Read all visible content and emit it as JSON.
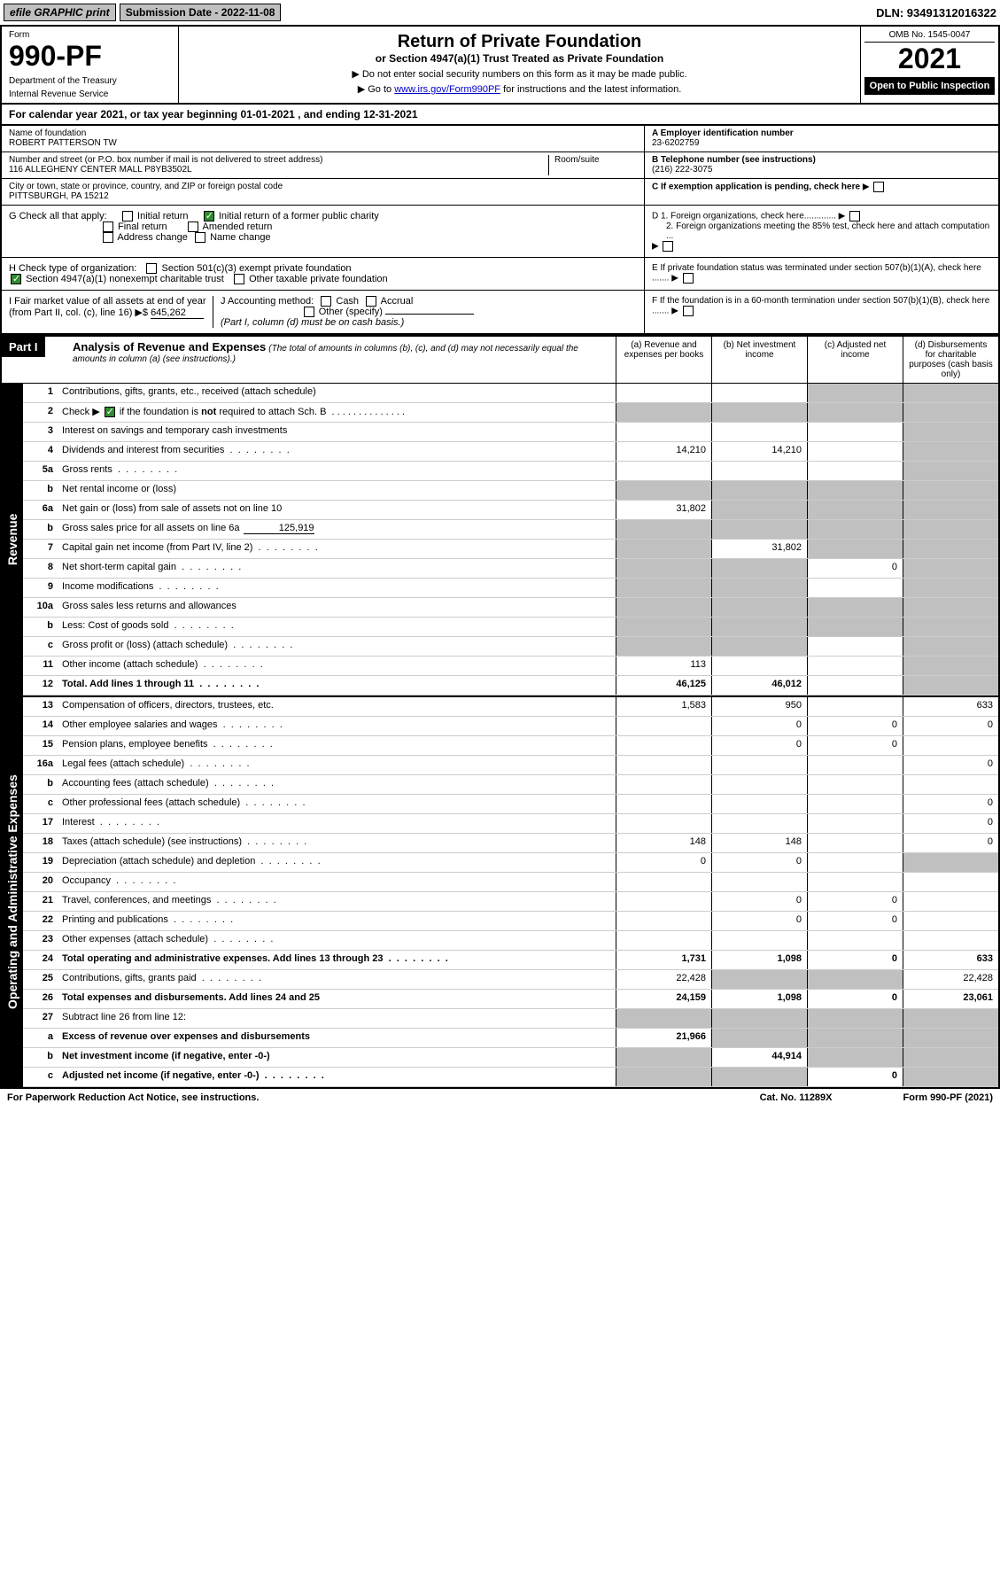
{
  "topbar": {
    "efile": "efile GRAPHIC print",
    "submission": "Submission Date - 2022-11-08",
    "dln": "DLN: 93491312016322"
  },
  "header": {
    "form_label": "Form",
    "form_number": "990-PF",
    "dept1": "Department of the Treasury",
    "dept2": "Internal Revenue Service",
    "title": "Return of Private Foundation",
    "subtitle": "or Section 4947(a)(1) Trust Treated as Private Foundation",
    "note1": "▶ Do not enter social security numbers on this form as it may be made public.",
    "note2_pre": "▶ Go to ",
    "note2_link": "www.irs.gov/Form990PF",
    "note2_post": " for instructions and the latest information.",
    "omb": "OMB No. 1545-0047",
    "year": "2021",
    "open": "Open to Public Inspection"
  },
  "calendar": "For calendar year 2021, or tax year beginning 01-01-2021                           , and ending 12-31-2021",
  "info": {
    "name_label": "Name of foundation",
    "name": "ROBERT PATTERSON TW",
    "addr_label": "Number and street (or P.O. box number if mail is not delivered to street address)",
    "addr": "116 ALLEGHENY CENTER MALL P8YB3502L",
    "room_label": "Room/suite",
    "city_label": "City or town, state or province, country, and ZIP or foreign postal code",
    "city": "PITTSBURGH, PA  15212",
    "ein_label": "A Employer identification number",
    "ein": "23-6202759",
    "phone_label": "B Telephone number (see instructions)",
    "phone": "(216) 222-3075",
    "c_label": "C If exemption application is pending, check here",
    "d1": "D 1. Foreign organizations, check here.............",
    "d2": "2. Foreign organizations meeting the 85% test, check here and attach computation ...",
    "e_label": "E  If private foundation status was terminated under section 507(b)(1)(A), check here .......",
    "f_label": "F  If the foundation is in a 60-month termination under section 507(b)(1)(B), check here .......",
    "g_label": "G Check all that apply:",
    "g_initial": "Initial return",
    "g_initial_former": "Initial return of a former public charity",
    "g_final": "Final return",
    "g_amended": "Amended return",
    "g_address": "Address change",
    "g_name": "Name change",
    "h_label": "H Check type of organization:",
    "h_501c3": "Section 501(c)(3) exempt private foundation",
    "h_4947": "Section 4947(a)(1) nonexempt charitable trust",
    "h_other": "Other taxable private foundation",
    "i_label": "I Fair market value of all assets at end of year (from Part II, col. (c), line 16) ▶$",
    "i_value": "645,262",
    "j_label": "J Accounting method:",
    "j_cash": "Cash",
    "j_accrual": "Accrual",
    "j_other": "Other (specify)",
    "j_note": "(Part I, column (d) must be on cash basis.)"
  },
  "part1": {
    "label": "Part I",
    "title": "Analysis of Revenue and Expenses",
    "subtitle": "(The total of amounts in columns (b), (c), and (d) may not necessarily equal the amounts in column (a) (see instructions).)",
    "col_a": "(a)  Revenue and expenses per books",
    "col_b": "(b)  Net investment income",
    "col_c": "(c)  Adjusted net income",
    "col_d": "(d)  Disbursements for charitable purposes (cash basis only)"
  },
  "side_labels": {
    "revenue": "Revenue",
    "expenses": "Operating and Administrative Expenses"
  },
  "rows": [
    {
      "n": "1",
      "d": "Contributions, gifts, grants, etc., received (attach schedule)",
      "a": "",
      "b": "",
      "c": "grey",
      "dv": "grey"
    },
    {
      "n": "2",
      "d": "Check ▶ ☑ if the foundation is not required to attach Sch. B",
      "dots": true,
      "a": "grey",
      "b": "grey",
      "c": "grey",
      "dv": "grey",
      "bold_not": true
    },
    {
      "n": "3",
      "d": "Interest on savings and temporary cash investments",
      "a": "",
      "b": "",
      "c": "",
      "dv": "grey"
    },
    {
      "n": "4",
      "d": "Dividends and interest from securities",
      "dots": true,
      "a": "14,210",
      "b": "14,210",
      "c": "",
      "dv": "grey"
    },
    {
      "n": "5a",
      "d": "Gross rents",
      "dots": true,
      "a": "",
      "b": "",
      "c": "",
      "dv": "grey"
    },
    {
      "n": "b",
      "d": "Net rental income or (loss)",
      "a": "grey",
      "b": "grey",
      "c": "grey",
      "dv": "grey"
    },
    {
      "n": "6a",
      "d": "Net gain or (loss) from sale of assets not on line 10",
      "a": "31,802",
      "b": "grey",
      "c": "grey",
      "dv": "grey"
    },
    {
      "n": "b",
      "d": "Gross sales price for all assets on line 6a",
      "inline_val": "125,919",
      "a": "grey",
      "b": "grey",
      "c": "grey",
      "dv": "grey"
    },
    {
      "n": "7",
      "d": "Capital gain net income (from Part IV, line 2)",
      "dots": true,
      "a": "grey",
      "b": "31,802",
      "c": "grey",
      "dv": "grey"
    },
    {
      "n": "8",
      "d": "Net short-term capital gain",
      "dots": true,
      "a": "grey",
      "b": "grey",
      "c": "0",
      "dv": "grey"
    },
    {
      "n": "9",
      "d": "Income modifications",
      "dots": true,
      "a": "grey",
      "b": "grey",
      "c": "",
      "dv": "grey"
    },
    {
      "n": "10a",
      "d": "Gross sales less returns and allowances",
      "a": "grey",
      "b": "grey",
      "c": "grey",
      "dv": "grey"
    },
    {
      "n": "b",
      "d": "Less: Cost of goods sold",
      "dots": true,
      "a": "grey",
      "b": "grey",
      "c": "grey",
      "dv": "grey"
    },
    {
      "n": "c",
      "d": "Gross profit or (loss) (attach schedule)",
      "dots": true,
      "a": "grey",
      "b": "grey",
      "c": "",
      "dv": "grey"
    },
    {
      "n": "11",
      "d": "Other income (attach schedule)",
      "dots": true,
      "a": "113",
      "b": "",
      "c": "",
      "dv": "grey"
    },
    {
      "n": "12",
      "d": "Total. Add lines 1 through 11",
      "dots": true,
      "bold": true,
      "a": "46,125",
      "b": "46,012",
      "c": "",
      "dv": "grey"
    }
  ],
  "exp_rows": [
    {
      "n": "13",
      "d": "Compensation of officers, directors, trustees, etc.",
      "a": "1,583",
      "b": "950",
      "c": "",
      "dv": "633"
    },
    {
      "n": "14",
      "d": "Other employee salaries and wages",
      "dots": true,
      "a": "",
      "b": "0",
      "c": "0",
      "dv": "0"
    },
    {
      "n": "15",
      "d": "Pension plans, employee benefits",
      "dots": true,
      "a": "",
      "b": "0",
      "c": "0",
      "dv": ""
    },
    {
      "n": "16a",
      "d": "Legal fees (attach schedule)",
      "dots": true,
      "a": "",
      "b": "",
      "c": "",
      "dv": "0"
    },
    {
      "n": "b",
      "d": "Accounting fees (attach schedule)",
      "dots": true,
      "a": "",
      "b": "",
      "c": "",
      "dv": ""
    },
    {
      "n": "c",
      "d": "Other professional fees (attach schedule)",
      "dots": true,
      "a": "",
      "b": "",
      "c": "",
      "dv": "0"
    },
    {
      "n": "17",
      "d": "Interest",
      "dots": true,
      "a": "",
      "b": "",
      "c": "",
      "dv": "0"
    },
    {
      "n": "18",
      "d": "Taxes (attach schedule) (see instructions)",
      "dots": true,
      "a": "148",
      "b": "148",
      "c": "",
      "dv": "0"
    },
    {
      "n": "19",
      "d": "Depreciation (attach schedule) and depletion",
      "dots": true,
      "a": "0",
      "b": "0",
      "c": "",
      "dv": "grey"
    },
    {
      "n": "20",
      "d": "Occupancy",
      "dots": true,
      "a": "",
      "b": "",
      "c": "",
      "dv": ""
    },
    {
      "n": "21",
      "d": "Travel, conferences, and meetings",
      "dots": true,
      "a": "",
      "b": "0",
      "c": "0",
      "dv": ""
    },
    {
      "n": "22",
      "d": "Printing and publications",
      "dots": true,
      "a": "",
      "b": "0",
      "c": "0",
      "dv": ""
    },
    {
      "n": "23",
      "d": "Other expenses (attach schedule)",
      "dots": true,
      "a": "",
      "b": "",
      "c": "",
      "dv": ""
    },
    {
      "n": "24",
      "d": "Total operating and administrative expenses. Add lines 13 through 23",
      "dots": true,
      "bold": true,
      "a": "1,731",
      "b": "1,098",
      "c": "0",
      "dv": "633"
    },
    {
      "n": "25",
      "d": "Contributions, gifts, grants paid",
      "dots": true,
      "a": "22,428",
      "b": "grey",
      "c": "grey",
      "dv": "22,428"
    },
    {
      "n": "26",
      "d": "Total expenses and disbursements. Add lines 24 and 25",
      "bold": true,
      "a": "24,159",
      "b": "1,098",
      "c": "0",
      "dv": "23,061"
    },
    {
      "n": "27",
      "d": "Subtract line 26 from line 12:",
      "a": "grey",
      "b": "grey",
      "c": "grey",
      "dv": "grey"
    },
    {
      "n": "a",
      "d": "Excess of revenue over expenses and disbursements",
      "bold": true,
      "a": "21,966",
      "b": "grey",
      "c": "grey",
      "dv": "grey"
    },
    {
      "n": "b",
      "d": "Net investment income (if negative, enter -0-)",
      "bold": true,
      "a": "grey",
      "b": "44,914",
      "c": "grey",
      "dv": "grey"
    },
    {
      "n": "c",
      "d": "Adjusted net income (if negative, enter -0-)",
      "dots": true,
      "bold": true,
      "a": "grey",
      "b": "grey",
      "c": "0",
      "dv": "grey"
    }
  ],
  "footer": {
    "left": "For Paperwork Reduction Act Notice, see instructions.",
    "mid": "Cat. No. 11289X",
    "right": "Form 990-PF (2021)"
  }
}
